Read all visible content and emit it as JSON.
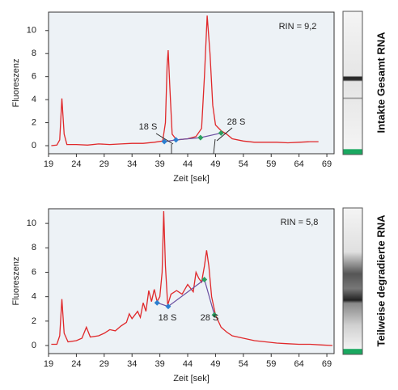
{
  "chart_data": [
    {
      "type": "line",
      "xlabel": "Zeit [sek]",
      "ylabel": "Fluoreszenz",
      "xlim": [
        19,
        70.3
      ],
      "ylim": [
        -0.7,
        11.6
      ],
      "xticks": [
        19,
        24,
        29,
        34,
        39,
        44,
        49,
        54,
        59,
        64,
        69
      ],
      "yticks": [
        0,
        2,
        4,
        6,
        8,
        10
      ],
      "x": [
        19.5,
        20.5,
        21.0,
        21.4,
        21.8,
        22.3,
        24,
        26,
        28,
        30,
        32,
        34,
        36,
        38,
        39.5,
        40.0,
        40.3,
        40.5,
        40.8,
        41.2,
        42,
        44,
        45.5,
        46.5,
        47.0,
        47.5,
        48.0,
        48.5,
        49,
        50,
        51,
        52,
        54,
        56,
        58,
        60,
        62,
        64,
        66,
        67.5
      ],
      "series": [
        {
          "color": "#e0282a",
          "values": [
            0.0,
            0.05,
            0.5,
            4.1,
            1.0,
            0.1,
            0.1,
            0.05,
            0.15,
            0.1,
            0.15,
            0.2,
            0.2,
            0.3,
            0.4,
            2.0,
            7.0,
            8.3,
            5.0,
            1.0,
            0.5,
            0.6,
            0.8,
            1.5,
            6.0,
            11.3,
            8.0,
            3.5,
            1.8,
            1.3,
            1.0,
            0.6,
            0.4,
            0.3,
            0.3,
            0.3,
            0.25,
            0.3,
            0.35,
            0.35
          ]
        }
      ],
      "markers": {
        "x": [
          39.8,
          41.9,
          46.3,
          50.0
        ],
        "values": [
          0.35,
          0.5,
          0.7,
          1.1
        ],
        "colors": [
          "#2a7fd0",
          "#2a7fd0",
          "#2aa060",
          "#2aa060"
        ],
        "line_color": "#6b4fa0"
      },
      "annotations": [
        {
          "text": "18 S",
          "color": "#2a9fd8"
        },
        {
          "text": "28 S",
          "color": "#2aa060"
        }
      ],
      "rin_label": "RIN = 9,2",
      "lane_label": "Intakte Gesamt RNA"
    },
    {
      "type": "line",
      "xlabel": "Zeit [sek]",
      "ylabel": "Fluoreszenz",
      "xlim": [
        19,
        70.3
      ],
      "ylim": [
        -0.66,
        11.2
      ],
      "xticks": [
        19,
        24,
        29,
        34,
        39,
        44,
        49,
        54,
        59,
        64,
        69
      ],
      "yticks": [
        0,
        2,
        4,
        6,
        8,
        10
      ],
      "x": [
        19.5,
        20.5,
        21.0,
        21.4,
        21.8,
        22.5,
        24,
        25,
        25.8,
        26.5,
        28,
        29,
        30,
        31,
        32,
        33,
        33.5,
        34,
        35,
        35.5,
        36,
        36.5,
        37,
        37.5,
        38,
        38.5,
        39,
        39.4,
        39.7,
        40.0,
        40.4,
        41,
        42,
        43,
        44,
        45,
        45.5,
        46,
        46.5,
        47,
        47.4,
        47.8,
        48.3,
        49,
        50,
        51,
        52,
        54,
        56,
        58,
        60,
        62,
        64,
        66,
        68,
        70
      ],
      "series": [
        {
          "color": "#e0282a",
          "values": [
            0.1,
            0.1,
            0.8,
            3.8,
            1.0,
            0.3,
            0.4,
            0.6,
            1.5,
            0.7,
            0.8,
            1.0,
            1.3,
            1.2,
            1.6,
            1.9,
            2.6,
            2.2,
            2.8,
            2.3,
            3.5,
            2.8,
            4.5,
            3.6,
            4.6,
            3.6,
            4.0,
            6.0,
            11.0,
            6.5,
            3.3,
            4.2,
            4.5,
            4.2,
            5.0,
            4.4,
            6.0,
            5.5,
            5.2,
            6.5,
            7.8,
            6.5,
            4.0,
            2.5,
            1.5,
            1.1,
            0.8,
            0.6,
            0.4,
            0.3,
            0.2,
            0.15,
            0.1,
            0.1,
            0.05,
            0.0
          ]
        }
      ],
      "markers": {
        "x": [
          38.5,
          40.5,
          47.0,
          48.8
        ],
        "values": [
          3.5,
          3.2,
          5.4,
          2.5
        ],
        "colors": [
          "#2a7fd0",
          "#2a7fd0",
          "#2aa060",
          "#2aa060"
        ],
        "line_color": "#6b4fa0"
      },
      "annotations": [
        {
          "text": "18 S",
          "color": "#2a9fd8"
        },
        {
          "text": "28 S",
          "color": "#2aa060"
        }
      ],
      "rin_label": "RIN = 5,8",
      "lane_label": "Teilweise degradierte RNA"
    }
  ]
}
